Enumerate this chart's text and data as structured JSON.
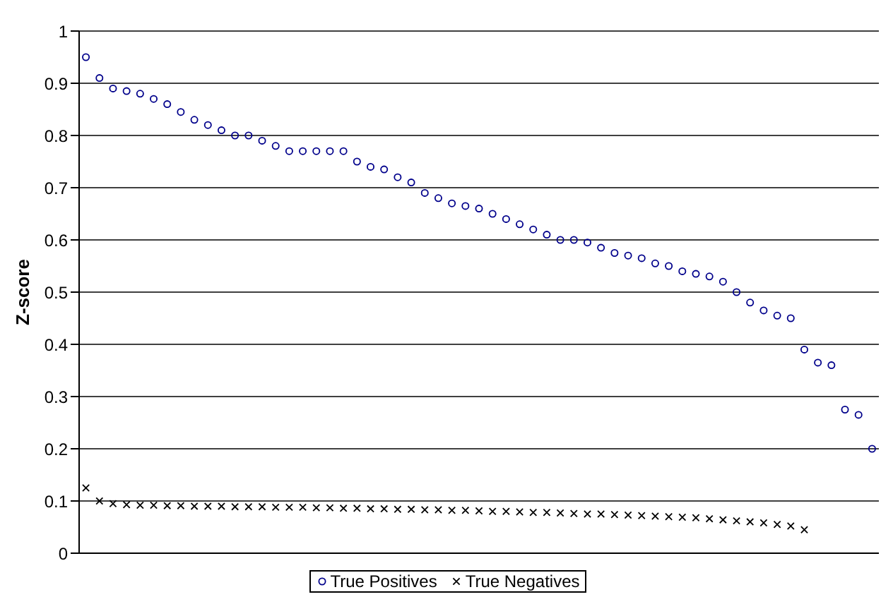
{
  "chart_data": {
    "type": "scatter",
    "ylabel": "Z-score",
    "categories": [
      null,
      null,
      null,
      null,
      null,
      null,
      null,
      null,
      null,
      null,
      null,
      null,
      null,
      null,
      null,
      null,
      null,
      null,
      null,
      null,
      null,
      null,
      null,
      null,
      null,
      null,
      null,
      null,
      null,
      null,
      null,
      null,
      null,
      null,
      null,
      null,
      null,
      null,
      null,
      null,
      null,
      null,
      null,
      null,
      null,
      null,
      null,
      null,
      null,
      null,
      null,
      null,
      null,
      null,
      null,
      null,
      null,
      null,
      null
    ],
    "ylim": [
      0,
      1
    ],
    "yticks": [
      0,
      0.1,
      0.2,
      0.3,
      0.4,
      0.5,
      0.6,
      0.7,
      0.8,
      0.9,
      1
    ],
    "grid": "y",
    "legend": "bottom",
    "series": [
      {
        "name": "True Positives",
        "color": "#00008b",
        "marker": "circle",
        "values": [
          0.95,
          0.91,
          0.89,
          0.885,
          0.88,
          0.87,
          0.86,
          0.845,
          0.83,
          0.82,
          0.81,
          0.8,
          0.8,
          0.79,
          0.78,
          0.77,
          0.77,
          0.77,
          0.77,
          0.77,
          0.75,
          0.74,
          0.735,
          0.72,
          0.71,
          0.69,
          0.68,
          0.67,
          0.665,
          0.66,
          0.65,
          0.64,
          0.63,
          0.62,
          0.61,
          0.6,
          0.6,
          0.595,
          0.585,
          0.575,
          0.57,
          0.565,
          0.555,
          0.55,
          0.54,
          0.535,
          0.53,
          0.52,
          0.5,
          0.48,
          0.465,
          0.455,
          0.45,
          0.39,
          0.365,
          0.36,
          0.275,
          0.265,
          0.2
        ]
      },
      {
        "name": "True Negatives",
        "color": "#000000",
        "marker": "cross",
        "values": [
          0.125,
          0.1,
          0.095,
          0.093,
          0.092,
          0.092,
          0.091,
          0.091,
          0.09,
          0.09,
          0.09,
          0.089,
          0.089,
          0.089,
          0.088,
          0.088,
          0.088,
          0.087,
          0.087,
          0.086,
          0.086,
          0.085,
          0.085,
          0.084,
          0.084,
          0.083,
          0.083,
          0.082,
          0.082,
          0.081,
          0.08,
          0.08,
          0.079,
          0.078,
          0.078,
          0.077,
          0.076,
          0.075,
          0.075,
          0.074,
          0.073,
          0.072,
          0.071,
          0.07,
          0.069,
          0.068,
          0.066,
          0.064,
          0.062,
          0.06,
          0.058,
          0.055,
          0.052,
          0.045,
          null,
          null,
          null,
          null,
          null
        ]
      }
    ]
  }
}
